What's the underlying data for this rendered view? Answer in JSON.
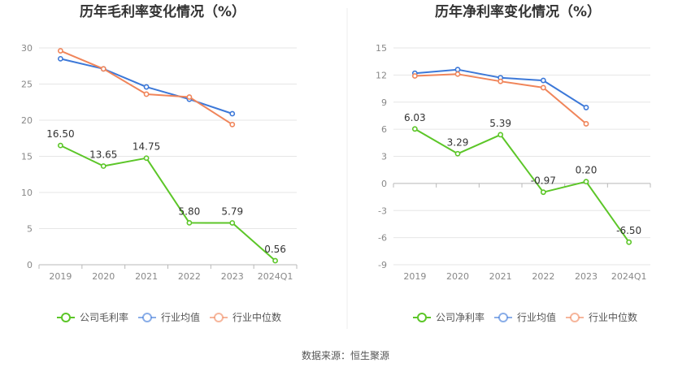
{
  "source": "数据来源：恒生聚源",
  "colors": {
    "company": "#5cc628",
    "avg": "#3c78d8",
    "median": "#f0855a",
    "grid": "#e6e6e6",
    "axis": "#b8b8b8"
  },
  "legend": [
    "公司毛利率",
    "行业均值",
    "行业中位数"
  ],
  "chart_data": [
    {
      "type": "line",
      "title": "历年毛利率变化情况（%）",
      "categories": [
        "2019",
        "2020",
        "2021",
        "2022",
        "2023",
        "2024Q1"
      ],
      "ylim": [
        0,
        30
      ],
      "yticks": [
        "0",
        "5",
        "10",
        "15",
        "20",
        "25",
        "30"
      ],
      "grid": true,
      "legend_position": "bottom",
      "series": [
        {
          "name": "公司毛利率",
          "values": [
            16.5,
            13.65,
            14.75,
            5.8,
            5.79,
            0.56
          ],
          "labels": [
            "16.50",
            "13.65",
            "14.75",
            "5.80",
            "5.79",
            "0.56"
          ]
        },
        {
          "name": "行业均值",
          "values": [
            28.5,
            27.1,
            24.6,
            22.9,
            20.9,
            null
          ]
        },
        {
          "name": "行业中位数",
          "values": [
            29.6,
            27.1,
            23.6,
            23.2,
            19.4,
            null
          ]
        }
      ]
    },
    {
      "type": "line",
      "title": "历年净利率变化情况（%）",
      "categories": [
        "2019",
        "2020",
        "2021",
        "2022",
        "2023",
        "2024Q1"
      ],
      "ylim": [
        -9,
        15
      ],
      "yticks": [
        "-9",
        "-6",
        "-3",
        "0",
        "3",
        "6",
        "9",
        "12",
        "15"
      ],
      "grid": true,
      "legend_position": "bottom",
      "legend": [
        "公司净利率",
        "行业均值",
        "行业中位数"
      ],
      "series": [
        {
          "name": "公司净利率",
          "values": [
            6.03,
            3.29,
            5.39,
            -0.97,
            0.2,
            -6.5
          ],
          "labels": [
            "6.03",
            "3.29",
            "5.39",
            "-0.97",
            "0.20",
            "-6.50"
          ]
        },
        {
          "name": "行业均值",
          "values": [
            12.2,
            12.6,
            11.7,
            11.4,
            8.4,
            null
          ]
        },
        {
          "name": "行业中位数",
          "values": [
            11.9,
            12.1,
            11.3,
            10.6,
            6.6,
            null
          ]
        }
      ]
    }
  ]
}
